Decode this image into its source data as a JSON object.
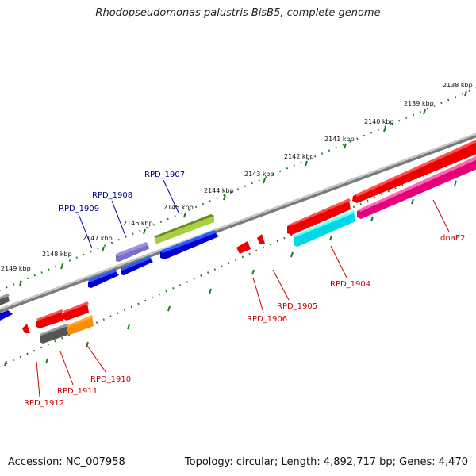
{
  "title": "Rhodopseudomonas palustris BisB5, complete genome",
  "footer": {
    "accession": "Accession: NC_007958",
    "summary": "Topology: circular; Length: 4,892,717 bp; Genes: 4,470"
  },
  "colors": {
    "backbone": "#888888",
    "tick": "#1a7a1a",
    "fwd_label": "#00008b",
    "rev_label": "#cc0000"
  },
  "scale_labels": [
    "2138 kbp",
    "2139 kbp",
    "2140 kbp",
    "2141 kbp",
    "2142 kbp",
    "2143 kbp",
    "2144 kbp",
    "2145 kbp",
    "2146 kbp",
    "2147 kbp",
    "2148 kbp",
    "2149 kbp"
  ],
  "forward_genes": [
    "RPD_1907",
    "RPD_1908",
    "RPD_1909"
  ],
  "reverse_genes": [
    "dnaE2",
    "RPD_1904",
    "RPD_1905",
    "RPD_1906",
    "RPD_1910",
    "RPD_1911",
    "RPD_1912"
  ]
}
